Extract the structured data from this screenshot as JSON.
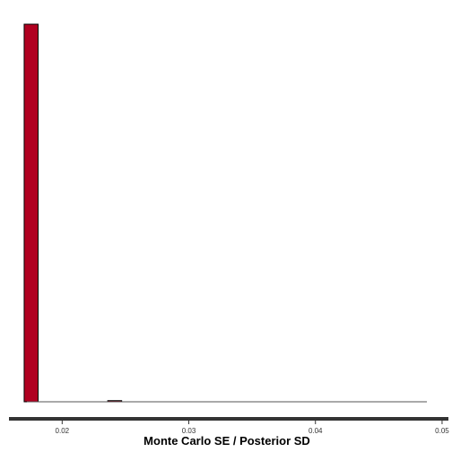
{
  "chart_data": {
    "type": "bar",
    "title": "",
    "xlabel": "Monte Carlo SE / Posterior SD",
    "ylabel": "",
    "xlim": [
      0.0158,
      0.0505
    ],
    "ylim": [
      0,
      1
    ],
    "bins": [
      {
        "x0": 0.017,
        "x1": 0.0181,
        "value": 1
      },
      {
        "x0": 0.0181,
        "x1": 0.0192,
        "value": 0
      },
      {
        "x0": 0.0192,
        "x1": 0.0203,
        "value": 0
      },
      {
        "x0": 0.0203,
        "x1": 0.0214,
        "value": 0
      },
      {
        "x0": 0.0214,
        "x1": 0.0225,
        "value": 0
      },
      {
        "x0": 0.0225,
        "x1": 0.0236,
        "value": 0
      },
      {
        "x0": 0.0236,
        "x1": 0.0247,
        "value": 0.003
      },
      {
        "x0": 0.0247,
        "x1": 0.0258,
        "value": 0
      },
      {
        "x0": 0.0258,
        "x1": 0.0269,
        "value": 0
      },
      {
        "x0": 0.0269,
        "x1": 0.028,
        "value": 0
      },
      {
        "x0": 0.028,
        "x1": 0.0291,
        "value": 0
      },
      {
        "x0": 0.0291,
        "x1": 0.0302,
        "value": 0
      },
      {
        "x0": 0.0302,
        "x1": 0.0313,
        "value": 0
      },
      {
        "x0": 0.0313,
        "x1": 0.0324,
        "value": 0
      },
      {
        "x0": 0.0324,
        "x1": 0.0335,
        "value": 0
      },
      {
        "x0": 0.0335,
        "x1": 0.0346,
        "value": 0
      },
      {
        "x0": 0.0346,
        "x1": 0.0357,
        "value": 0
      },
      {
        "x0": 0.0357,
        "x1": 0.0368,
        "value": 0
      },
      {
        "x0": 0.0368,
        "x1": 0.0379,
        "value": 0
      },
      {
        "x0": 0.0379,
        "x1": 0.039,
        "value": 0
      },
      {
        "x0": 0.039,
        "x1": 0.0401,
        "value": 0
      },
      {
        "x0": 0.0401,
        "x1": 0.0412,
        "value": 0
      },
      {
        "x0": 0.0412,
        "x1": 0.0423,
        "value": 0
      },
      {
        "x0": 0.0423,
        "x1": 0.0434,
        "value": 0
      },
      {
        "x0": 0.0434,
        "x1": 0.0445,
        "value": 0
      },
      {
        "x0": 0.0445,
        "x1": 0.0456,
        "value": 0
      },
      {
        "x0": 0.0456,
        "x1": 0.0467,
        "value": 0
      },
      {
        "x0": 0.0467,
        "x1": 0.0478,
        "value": 0
      },
      {
        "x0": 0.0478,
        "x1": 0.0489,
        "value": 0
      },
      {
        "x0": 0.0489,
        "x1": 0.05,
        "value": 0
      }
    ],
    "x_ticks": [
      {
        "value": 0.02,
        "label": "0.02"
      },
      {
        "value": 0.03,
        "label": "0.03"
      },
      {
        "value": 0.04,
        "label": "0.04"
      },
      {
        "value": 0.05,
        "label": "0.05"
      }
    ],
    "bar_color": "#b00020",
    "bar_outline_color": "#000000",
    "axis_color": "#333333",
    "grid": false,
    "legend": "none"
  }
}
